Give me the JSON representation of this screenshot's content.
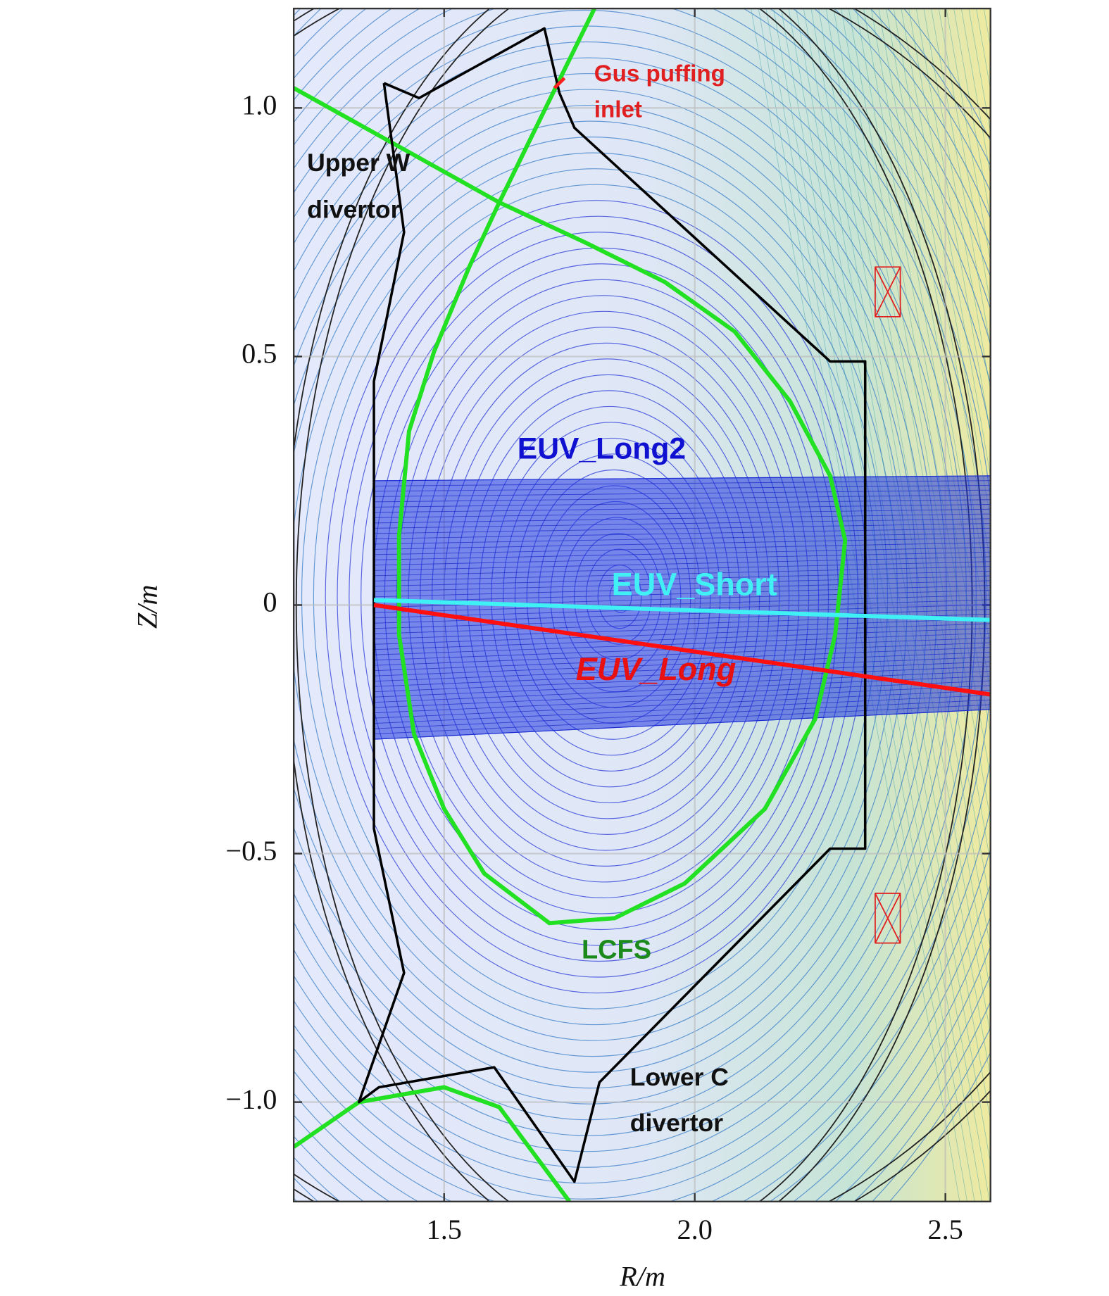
{
  "chart_data": {
    "type": "equilibrium",
    "xlabel": "R/m",
    "ylabel": "Z/m",
    "xlim": [
      1.2,
      2.59
    ],
    "ylim": [
      -1.2,
      1.2
    ],
    "xticks": [
      1.5,
      {
        "value": 2,
        "label": "2.0"
      },
      2.5
    ],
    "yticks": [
      {
        "value": -1,
        "label": "−1.0"
      },
      {
        "value": -0.5,
        "label": "−0.5"
      },
      0,
      0.5,
      {
        "value": 1,
        "label": "1.0"
      }
    ],
    "grid": true,
    "annotations": [
      [
        "Gus puffing",
        "inlet"
      ],
      [
        "Upper W",
        "divertor"
      ],
      [
        "EUV_Long2"
      ],
      [
        "EUV_Short"
      ],
      [
        "EUV_Long"
      ],
      [
        "LCFS"
      ],
      [
        "Lower C",
        "divertor"
      ]
    ],
    "lines": [
      {
        "color": "#1f35e0",
        "fill": "#1f35e0",
        "width": 1,
        "x": [
          1.36,
          2.59,
          2.59,
          1.36,
          1.36
        ],
        "y": [
          0.25,
          0.26,
          -0.21,
          -0.27,
          0.25
        ]
      },
      {
        "color": "#22e022",
        "width": 5,
        "x": [
          1.61,
          1.55,
          1.48,
          1.43,
          1.41,
          1.41,
          1.44,
          1.5,
          1.58,
          1.71,
          1.84,
          1.98,
          2.14,
          2.24,
          2.28,
          2.3,
          2.27,
          2.19,
          2.08,
          1.94,
          1.78,
          1.61
        ],
        "y": [
          0.81,
          0.68,
          0.51,
          0.35,
          0.14,
          -0.06,
          -0.26,
          -0.41,
          -0.54,
          -0.64,
          -0.63,
          -0.56,
          -0.41,
          -0.23,
          -0.06,
          0.13,
          0.26,
          0.41,
          0.55,
          0.65,
          0.73,
          0.81
        ]
      },
      {
        "color": "#22e022",
        "width": 5,
        "x": [
          1.2,
          1.61,
          1.8
        ],
        "y": [
          1.04,
          0.81,
          1.2
        ]
      },
      {
        "color": "#22e022",
        "width": 5,
        "x": [
          1.2,
          1.33,
          1.5,
          1.61,
          1.75
        ],
        "y": [
          -1.09,
          -1.0,
          -0.97,
          -1.01,
          -1.2
        ]
      },
      {
        "color": "#000000",
        "width": 3,
        "x": [
          1.38,
          1.45,
          1.7,
          1.73,
          1.76,
          2.27,
          2.34,
          2.34,
          2.27,
          1.81,
          1.76,
          1.6,
          1.37,
          1.33,
          1.42,
          1.36,
          1.36,
          1.42,
          1.38
        ],
        "y": [
          1.05,
          1.02,
          1.16,
          1.03,
          0.96,
          0.49,
          0.49,
          -0.49,
          -0.49,
          -0.96,
          -1.16,
          -0.93,
          -0.97,
          -1.0,
          -0.74,
          -0.45,
          0.45,
          0.75,
          1.05
        ]
      },
      {
        "color": "#3ff0f5",
        "width": 5,
        "x": [
          1.36,
          2.59
        ],
        "y": [
          0.01,
          -0.03
        ]
      },
      {
        "color": "#ff1010",
        "width": 5,
        "x": [
          1.36,
          2.59
        ],
        "y": [
          0.0,
          -0.18
        ]
      },
      {
        "color": "#ff2020",
        "width": 4,
        "x": [
          1.72,
          1.74
        ],
        "y": [
          1.04,
          1.06
        ]
      },
      {
        "color": "#e02020",
        "width": 1.5,
        "x": [
          2.36,
          2.41,
          2.41,
          2.36,
          2.36,
          2.41,
          null,
          2.41,
          2.36
        ],
        "y": [
          0.68,
          0.68,
          0.58,
          0.58,
          0.68,
          0.58,
          null,
          0.68,
          0.58
        ]
      },
      {
        "color": "#e02020",
        "width": 1.5,
        "x": [
          2.36,
          2.41,
          2.41,
          2.36,
          2.36,
          2.41,
          null,
          2.41,
          2.36
        ],
        "y": [
          -0.58,
          -0.58,
          -0.68,
          -0.68,
          -0.58,
          -0.68,
          null,
          -0.58,
          -0.68
        ]
      }
    ]
  }
}
